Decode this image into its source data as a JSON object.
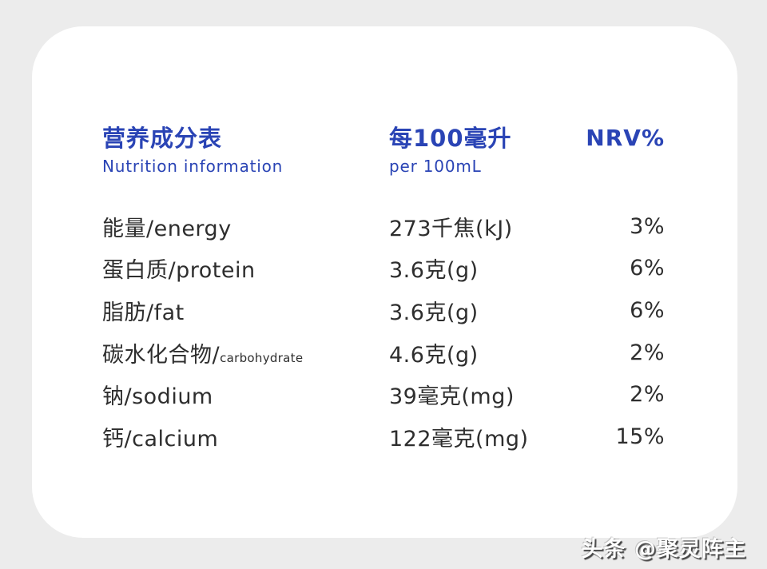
{
  "colors": {
    "accent_blue": "#2a44b5",
    "text_dark": "#2e2e2e",
    "background": "#ececec",
    "card": "#ffffff"
  },
  "header": {
    "title_zh": "营养成分表",
    "title_en": "Nutrition information",
    "serving_zh": "每100毫升",
    "serving_en": "per 100mL",
    "nrv_label": "NRV%"
  },
  "rows": [
    {
      "label": "能量/energy",
      "label_small": "",
      "amount": "273千焦(kJ)",
      "nrv": "3%"
    },
    {
      "label": "蛋白质/protein",
      "label_small": "",
      "amount": "3.6克(g)",
      "nrv": "6%"
    },
    {
      "label": "脂肪/fat",
      "label_small": "",
      "amount": "3.6克(g)",
      "nrv": "6%"
    },
    {
      "label": "碳水化合物/",
      "label_small": "carbohydrate",
      "amount": "4.6克(g)",
      "nrv": "2%"
    },
    {
      "label": "钠/sodium",
      "label_small": "",
      "amount": "39毫克(mg)",
      "nrv": "2%"
    },
    {
      "label": "钙/calcium",
      "label_small": "",
      "amount": "122毫克(mg)",
      "nrv": "15%"
    }
  ],
  "watermark": {
    "text": "头条 @聚灵阵主"
  }
}
